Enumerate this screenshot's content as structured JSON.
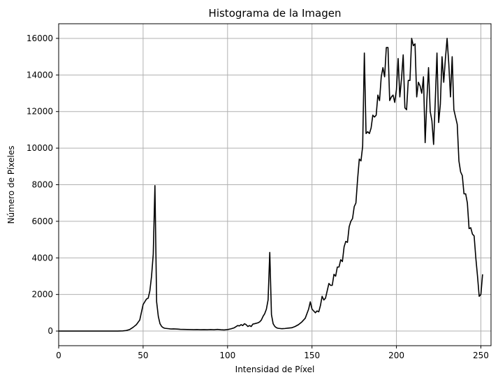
{
  "chart_data": {
    "type": "line",
    "title": "Histograma de la Imagen",
    "xlabel": "Intensidad de Píxel",
    "ylabel": "Número de Píxeles",
    "xlim": [
      0,
      256
    ],
    "ylim": [
      -800,
      16800
    ],
    "xticks": [
      0,
      50,
      100,
      150,
      200,
      250
    ],
    "yticks": [
      0,
      2000,
      4000,
      6000,
      8000,
      10000,
      12000,
      14000,
      16000
    ],
    "grid": true,
    "line_color": "#000000",
    "series": [
      {
        "points": [
          [
            0,
            0
          ],
          [
            10,
            0
          ],
          [
            20,
            0
          ],
          [
            30,
            0
          ],
          [
            35,
            0
          ],
          [
            38,
            10
          ],
          [
            40,
            30
          ],
          [
            42,
            80
          ],
          [
            44,
            200
          ],
          [
            46,
            350
          ],
          [
            48,
            600
          ],
          [
            50,
            1450
          ],
          [
            51,
            1600
          ],
          [
            52,
            1750
          ],
          [
            53,
            1800
          ],
          [
            54,
            2200
          ],
          [
            55,
            3000
          ],
          [
            56,
            4200
          ],
          [
            57,
            7950
          ],
          [
            58,
            1600
          ],
          [
            59,
            800
          ],
          [
            60,
            400
          ],
          [
            61,
            250
          ],
          [
            62,
            180
          ],
          [
            63,
            150
          ],
          [
            64,
            140
          ],
          [
            65,
            130
          ],
          [
            66,
            120
          ],
          [
            67,
            115
          ],
          [
            68,
            120
          ],
          [
            70,
            110
          ],
          [
            72,
            95
          ],
          [
            74,
            90
          ],
          [
            76,
            85
          ],
          [
            78,
            80
          ],
          [
            80,
            75
          ],
          [
            82,
            80
          ],
          [
            84,
            70
          ],
          [
            86,
            75
          ],
          [
            88,
            70
          ],
          [
            90,
            80
          ],
          [
            92,
            70
          ],
          [
            94,
            90
          ],
          [
            96,
            70
          ],
          [
            98,
            60
          ],
          [
            100,
            80
          ],
          [
            102,
            120
          ],
          [
            104,
            180
          ],
          [
            106,
            300
          ],
          [
            107,
            280
          ],
          [
            108,
            350
          ],
          [
            109,
            300
          ],
          [
            110,
            400
          ],
          [
            111,
            350
          ],
          [
            112,
            250
          ],
          [
            113,
            300
          ],
          [
            114,
            250
          ],
          [
            115,
            380
          ],
          [
            116,
            400
          ],
          [
            118,
            450
          ],
          [
            119,
            500
          ],
          [
            120,
            600
          ],
          [
            121,
            800
          ],
          [
            122,
            950
          ],
          [
            123,
            1200
          ],
          [
            124,
            1700
          ],
          [
            125,
            4300
          ],
          [
            126,
            900
          ],
          [
            127,
            400
          ],
          [
            128,
            250
          ],
          [
            129,
            180
          ],
          [
            130,
            150
          ],
          [
            132,
            130
          ],
          [
            134,
            140
          ],
          [
            136,
            160
          ],
          [
            138,
            180
          ],
          [
            140,
            250
          ],
          [
            142,
            350
          ],
          [
            144,
            500
          ],
          [
            146,
            700
          ],
          [
            148,
            1200
          ],
          [
            149,
            1600
          ],
          [
            150,
            1200
          ],
          [
            151,
            1100
          ],
          [
            152,
            1000
          ],
          [
            153,
            1100
          ],
          [
            154,
            1050
          ],
          [
            155,
            1400
          ],
          [
            156,
            1900
          ],
          [
            157,
            1700
          ],
          [
            158,
            1800
          ],
          [
            159,
            2200
          ],
          [
            160,
            2600
          ],
          [
            161,
            2500
          ],
          [
            162,
            2500
          ],
          [
            163,
            3100
          ],
          [
            164,
            3000
          ],
          [
            165,
            3500
          ],
          [
            166,
            3500
          ],
          [
            167,
            3900
          ],
          [
            168,
            3800
          ],
          [
            169,
            4600
          ],
          [
            170,
            4900
          ],
          [
            171,
            4850
          ],
          [
            172,
            5700
          ],
          [
            173,
            6000
          ],
          [
            174,
            6150
          ],
          [
            175,
            6800
          ],
          [
            176,
            7000
          ],
          [
            177,
            8300
          ],
          [
            178,
            9400
          ],
          [
            179,
            9300
          ],
          [
            180,
            10100
          ],
          [
            181,
            15200
          ],
          [
            182,
            10800
          ],
          [
            183,
            10900
          ],
          [
            184,
            10800
          ],
          [
            185,
            11100
          ],
          [
            186,
            11800
          ],
          [
            187,
            11700
          ],
          [
            188,
            11800
          ],
          [
            189,
            12900
          ],
          [
            190,
            12600
          ],
          [
            191,
            13900
          ],
          [
            192,
            14400
          ],
          [
            193,
            13900
          ],
          [
            194,
            15500
          ],
          [
            195,
            15500
          ],
          [
            196,
            12600
          ],
          [
            197,
            12800
          ],
          [
            198,
            12900
          ],
          [
            199,
            12500
          ],
          [
            200,
            13200
          ],
          [
            201,
            14900
          ],
          [
            202,
            12800
          ],
          [
            203,
            13800
          ],
          [
            204,
            15100
          ],
          [
            205,
            12200
          ],
          [
            206,
            12100
          ],
          [
            207,
            13700
          ],
          [
            208,
            13700
          ],
          [
            209,
            16000
          ],
          [
            210,
            15600
          ],
          [
            211,
            15700
          ],
          [
            212,
            12800
          ],
          [
            213,
            13600
          ],
          [
            214,
            13400
          ],
          [
            215,
            13000
          ],
          [
            216,
            13900
          ],
          [
            217,
            10300
          ],
          [
            218,
            12600
          ],
          [
            219,
            14400
          ],
          [
            220,
            12000
          ],
          [
            221,
            11500
          ],
          [
            222,
            10200
          ],
          [
            223,
            12600
          ],
          [
            224,
            15200
          ],
          [
            225,
            11400
          ],
          [
            226,
            12400
          ],
          [
            227,
            15000
          ],
          [
            228,
            13600
          ],
          [
            229,
            14900
          ],
          [
            230,
            16000
          ],
          [
            231,
            14600
          ],
          [
            232,
            12800
          ],
          [
            233,
            15000
          ],
          [
            234,
            12100
          ],
          [
            235,
            11700
          ],
          [
            236,
            11300
          ],
          [
            237,
            9300
          ],
          [
            238,
            8700
          ],
          [
            239,
            8500
          ],
          [
            240,
            7500
          ],
          [
            241,
            7500
          ],
          [
            242,
            7000
          ],
          [
            243,
            5600
          ],
          [
            244,
            5650
          ],
          [
            245,
            5300
          ],
          [
            246,
            5200
          ],
          [
            247,
            4000
          ],
          [
            248,
            3000
          ],
          [
            249,
            1900
          ],
          [
            250,
            2000
          ],
          [
            251,
            3100
          ]
        ]
      }
    ]
  }
}
